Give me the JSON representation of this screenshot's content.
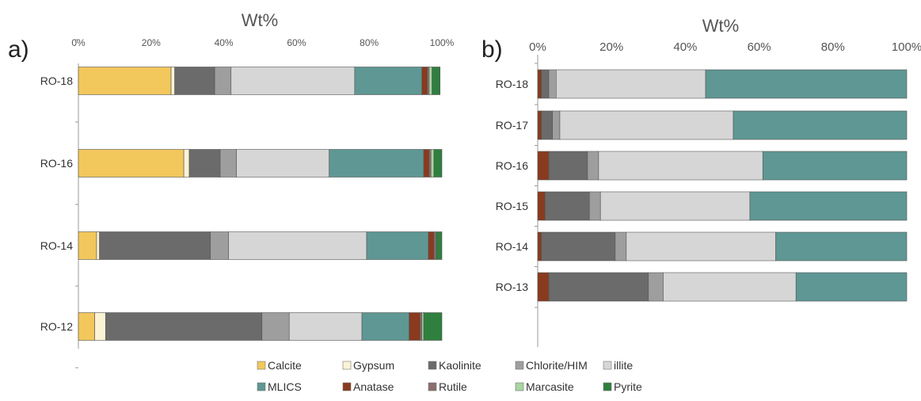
{
  "legend": {
    "items": [
      {
        "name": "Calcite",
        "color": "#F2C75C"
      },
      {
        "name": "Gypsum",
        "color": "#FBF3D5"
      },
      {
        "name": "Kaolinite",
        "color": "#6B6B6B"
      },
      {
        "name": "Chlorite/HIM",
        "color": "#9E9E9E"
      },
      {
        "name": "illite",
        "color": "#D6D6D6"
      },
      {
        "name": "MLICS",
        "color": "#5E9793"
      },
      {
        "name": "Anatase",
        "color": "#8A3A1E"
      },
      {
        "name": "Rutile",
        "color": "#8C6E6E"
      },
      {
        "name": "Marcasite",
        "color": "#A8D5A0"
      },
      {
        "name": "Pyrite",
        "color": "#2F7F3F"
      }
    ]
  },
  "chart_data": [
    {
      "type": "bar",
      "orientation": "horizontal",
      "stacked": true,
      "panel_label": "a)",
      "xlabel": "Wt%",
      "xlim": [
        0,
        100
      ],
      "xticks": [
        "0%",
        "20%",
        "40%",
        "60%",
        "80%",
        "100%"
      ],
      "categories": [
        "RO-18",
        "RO-16",
        "RO-14",
        "RO-12"
      ],
      "series": [
        {
          "name": "Calcite",
          "values": [
            25.5,
            29,
            5,
            4.5
          ]
        },
        {
          "name": "Gypsum",
          "values": [
            1,
            1.5,
            0.8,
            3
          ]
        },
        {
          "name": "Kaolinite",
          "values": [
            11,
            8.5,
            30.5,
            43
          ]
        },
        {
          "name": "Chlorite/HIM",
          "values": [
            4.5,
            4.5,
            5,
            7.5
          ]
        },
        {
          "name": "illite",
          "values": [
            34,
            25.5,
            38,
            20
          ]
        },
        {
          "name": "MLICS",
          "values": [
            18.5,
            26,
            17,
            13
          ]
        },
        {
          "name": "Anatase",
          "values": [
            1.5,
            1.5,
            1.5,
            3
          ]
        },
        {
          "name": "Rutile",
          "values": [
            0.5,
            0.5,
            0.5,
            0.5
          ]
        },
        {
          "name": "Marcasite",
          "values": [
            0.8,
            0.8,
            0.2,
            0.5
          ]
        },
        {
          "name": "Pyrite",
          "values": [
            2.2,
            2.2,
            1.5,
            5
          ]
        }
      ]
    },
    {
      "type": "bar",
      "orientation": "horizontal",
      "stacked": true,
      "panel_label": "b)",
      "xlabel": "Wt%",
      "xlim": [
        0,
        100
      ],
      "xticks": [
        "0%",
        "20%",
        "40%",
        "60%",
        "80%",
        "100%"
      ],
      "categories": [
        "RO-18",
        "RO-17",
        "RO-16",
        "RO-15",
        "RO-14",
        "RO-13"
      ],
      "series": [
        {
          "name": "Anatase",
          "values": [
            1,
            1,
            3,
            2,
            1,
            3
          ]
        },
        {
          "name": "Kaolinite",
          "values": [
            2,
            3,
            10.5,
            12,
            20,
            27
          ]
        },
        {
          "name": "Chlorite/HIM",
          "values": [
            2,
            2,
            3,
            3,
            3,
            4
          ]
        },
        {
          "name": "illite",
          "values": [
            40.5,
            47,
            44.5,
            40.5,
            40.5,
            36
          ]
        },
        {
          "name": "MLICS",
          "values": [
            54.5,
            47,
            39,
            42.5,
            35.5,
            30
          ]
        }
      ]
    }
  ]
}
